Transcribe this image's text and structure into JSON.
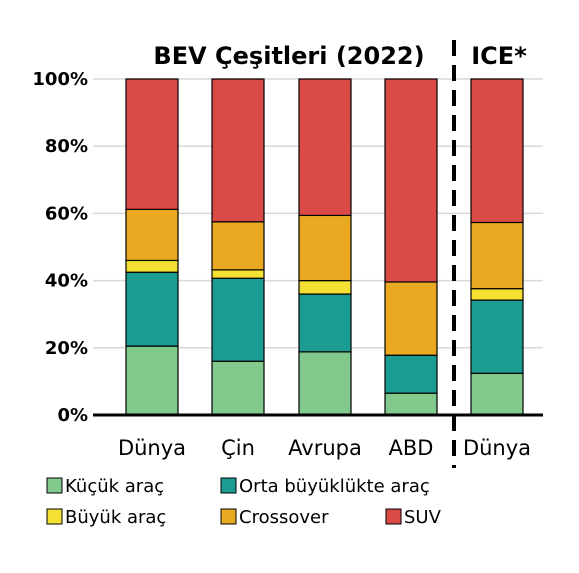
{
  "chart_data": {
    "type": "bar",
    "stacked": true,
    "group_titles": [
      "BEV Çeşitleri (2022)",
      "ICE*"
    ],
    "categories": [
      "Dünya",
      "Çin",
      "Avrupa",
      "ABD",
      "Dünya"
    ],
    "series": [
      {
        "name": "Küçük araç",
        "color": "#82c98c",
        "values": [
          20.5,
          16,
          18.8,
          6.5,
          12.4
        ]
      },
      {
        "name": "Orta büyüklükte araç",
        "color": "#1a9c93",
        "values": [
          22,
          24.7,
          17.2,
          11.3,
          21.8
        ]
      },
      {
        "name": "Büyük araç",
        "color": "#f5e133",
        "values": [
          3.5,
          2.5,
          4,
          0,
          3.4
        ]
      },
      {
        "name": "Crossover",
        "color": "#e9aa22",
        "values": [
          15.2,
          14.3,
          19.4,
          21.8,
          19.7
        ]
      },
      {
        "name": "SUV",
        "color": "#da4a46",
        "values": [
          38.8,
          42.5,
          40.6,
          60.4,
          42.7
        ]
      }
    ],
    "yticks": [
      "0%",
      "20%",
      "40%",
      "60%",
      "80%",
      "100%"
    ],
    "ylim": [
      0,
      100
    ],
    "grid": true,
    "legend_position": "bottom"
  }
}
